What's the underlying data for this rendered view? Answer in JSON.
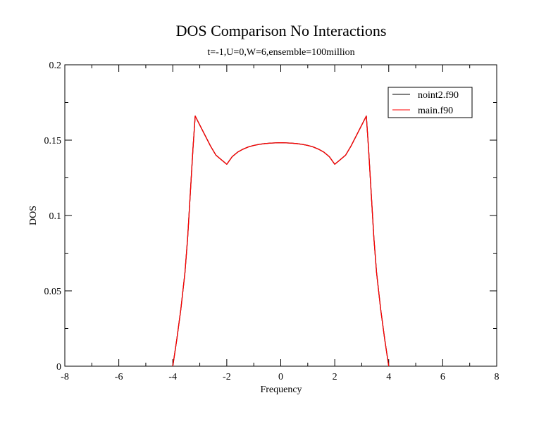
{
  "chart_data": {
    "type": "line",
    "title": "DOS Comparison No Interactions",
    "subtitle": "t=-1,U=0,W=6,ensemble=100million",
    "xlabel": "Frequency",
    "ylabel": "DOS",
    "xlim": [
      -8,
      8
    ],
    "ylim": [
      0,
      0.2
    ],
    "xticks": [
      -8,
      -6,
      -4,
      -2,
      0,
      2,
      4,
      6,
      8
    ],
    "xtick_labels": [
      "-8",
      "-6",
      "-4",
      "-2",
      "0",
      "2",
      "4",
      "6",
      "8"
    ],
    "yticks": [
      0,
      0.05,
      0.1,
      0.15,
      0.2
    ],
    "ytick_labels": [
      "0",
      "0.05",
      "0.1",
      "0.15",
      "0.2"
    ],
    "grid": false,
    "legend_position": "top-right",
    "series": [
      {
        "name": "noint2.f90",
        "color": "#000000",
        "x": [
          -4.0,
          -3.85,
          -3.7,
          -3.55,
          -3.45,
          -3.35,
          -3.25,
          -3.17,
          -3.0,
          -2.8,
          -2.6,
          -2.4,
          -2.2,
          -2.0,
          -1.8,
          -1.6,
          -1.4,
          -1.2,
          -1.0,
          -0.8,
          -0.6,
          -0.4,
          -0.2,
          0.0,
          0.2,
          0.4,
          0.6,
          0.8,
          1.0,
          1.2,
          1.4,
          1.6,
          1.8,
          2.0,
          2.2,
          2.4,
          2.6,
          2.8,
          3.0,
          3.17,
          3.25,
          3.35,
          3.45,
          3.55,
          3.7,
          3.85,
          4.0
        ],
        "y": [
          0.0,
          0.018,
          0.038,
          0.062,
          0.085,
          0.115,
          0.145,
          0.166,
          0.16,
          0.153,
          0.146,
          0.14,
          0.137,
          0.134,
          0.139,
          0.142,
          0.144,
          0.1455,
          0.1465,
          0.1472,
          0.1477,
          0.148,
          0.1482,
          0.1483,
          0.1482,
          0.148,
          0.1477,
          0.1472,
          0.1465,
          0.1455,
          0.144,
          0.142,
          0.139,
          0.134,
          0.137,
          0.14,
          0.146,
          0.153,
          0.16,
          0.166,
          0.145,
          0.115,
          0.085,
          0.062,
          0.038,
          0.018,
          0.0
        ]
      },
      {
        "name": "main.f90",
        "color": "#ff0000",
        "x": [
          -4.0,
          -3.85,
          -3.7,
          -3.55,
          -3.45,
          -3.35,
          -3.25,
          -3.17,
          -3.0,
          -2.8,
          -2.6,
          -2.4,
          -2.2,
          -2.0,
          -1.8,
          -1.6,
          -1.4,
          -1.2,
          -1.0,
          -0.8,
          -0.6,
          -0.4,
          -0.2,
          0.0,
          0.2,
          0.4,
          0.6,
          0.8,
          1.0,
          1.2,
          1.4,
          1.6,
          1.8,
          2.0,
          2.2,
          2.4,
          2.6,
          2.8,
          3.0,
          3.17,
          3.25,
          3.35,
          3.45,
          3.55,
          3.7,
          3.85,
          4.0
        ],
        "y": [
          0.0,
          0.018,
          0.038,
          0.062,
          0.085,
          0.115,
          0.145,
          0.166,
          0.16,
          0.153,
          0.146,
          0.14,
          0.137,
          0.134,
          0.139,
          0.142,
          0.144,
          0.1455,
          0.1465,
          0.1472,
          0.1477,
          0.148,
          0.1482,
          0.1483,
          0.1482,
          0.148,
          0.1477,
          0.1472,
          0.1465,
          0.1455,
          0.144,
          0.142,
          0.139,
          0.134,
          0.137,
          0.14,
          0.146,
          0.153,
          0.16,
          0.166,
          0.145,
          0.115,
          0.085,
          0.062,
          0.038,
          0.018,
          0.0
        ]
      }
    ]
  }
}
